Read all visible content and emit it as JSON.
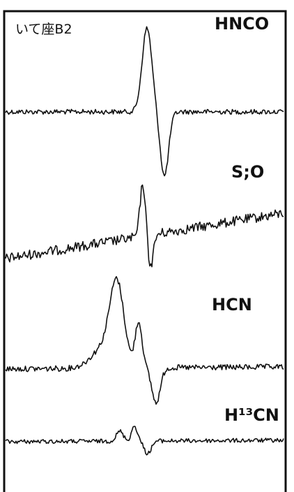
{
  "header": {
    "source_label": "いて座B2"
  },
  "spectra": [
    {
      "label": "HNCO"
    },
    {
      "label": "S;O"
    },
    {
      "label": "HCN"
    },
    {
      "label": "H¹³CN"
    }
  ]
}
